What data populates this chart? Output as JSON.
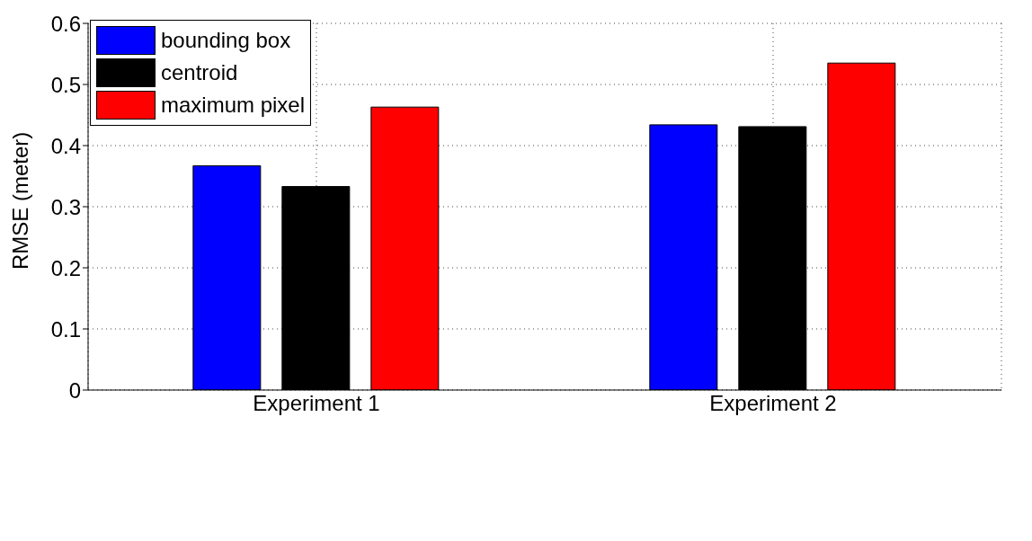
{
  "chart_data": {
    "type": "bar",
    "ylabel": "RMSE (meter)",
    "categories": [
      "Experiment 1",
      "Experiment 2"
    ],
    "series": [
      {
        "name": "bounding box",
        "color": "#0000ff",
        "values": [
          0.367,
          0.434
        ]
      },
      {
        "name": "centroid",
        "color": "#000000",
        "values": [
          0.333,
          0.431
        ]
      },
      {
        "name": "maximum pixel",
        "color": "#ff0000",
        "values": [
          0.463,
          0.535
        ]
      }
    ],
    "ylim": [
      0,
      0.6
    ],
    "yticks": [
      0,
      0.1,
      0.2,
      0.3,
      0.4,
      0.5,
      0.6
    ],
    "grid": true,
    "legend": "top left"
  }
}
